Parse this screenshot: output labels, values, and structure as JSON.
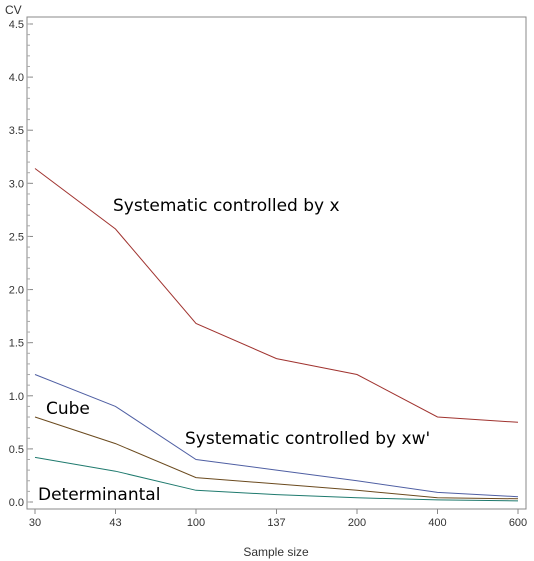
{
  "chart_data": {
    "type": "line",
    "ylabel": "CV",
    "xlabel": "Sample size",
    "categories": [
      "30",
      "43",
      "100",
      "137",
      "200",
      "400",
      "600"
    ],
    "ylim": [
      0,
      4.5
    ],
    "yticks": [
      "0.0",
      "0.5",
      "1.0",
      "1.5",
      "2.0",
      "2.5",
      "3.0",
      "3.5",
      "4.0",
      "4.5"
    ],
    "grid": false,
    "legend": "none",
    "series": [
      {
        "name": "Systematic controlled by x",
        "color": "#a0332f",
        "values": [
          3.14,
          2.57,
          1.68,
          1.35,
          1.2,
          0.8,
          0.75
        ]
      },
      {
        "name": "Systematic controlled by xw'",
        "color": "#4f5fa3",
        "values": [
          1.2,
          0.9,
          0.4,
          0.3,
          0.2,
          0.09,
          0.05
        ]
      },
      {
        "name": "Cube",
        "color": "#6b4a1e",
        "values": [
          0.8,
          0.55,
          0.23,
          0.17,
          0.11,
          0.04,
          0.03
        ]
      },
      {
        "name": "Determinantal",
        "color": "#1f7a6e",
        "values": [
          0.42,
          0.29,
          0.11,
          0.07,
          0.04,
          0.02,
          0.01
        ]
      }
    ]
  }
}
